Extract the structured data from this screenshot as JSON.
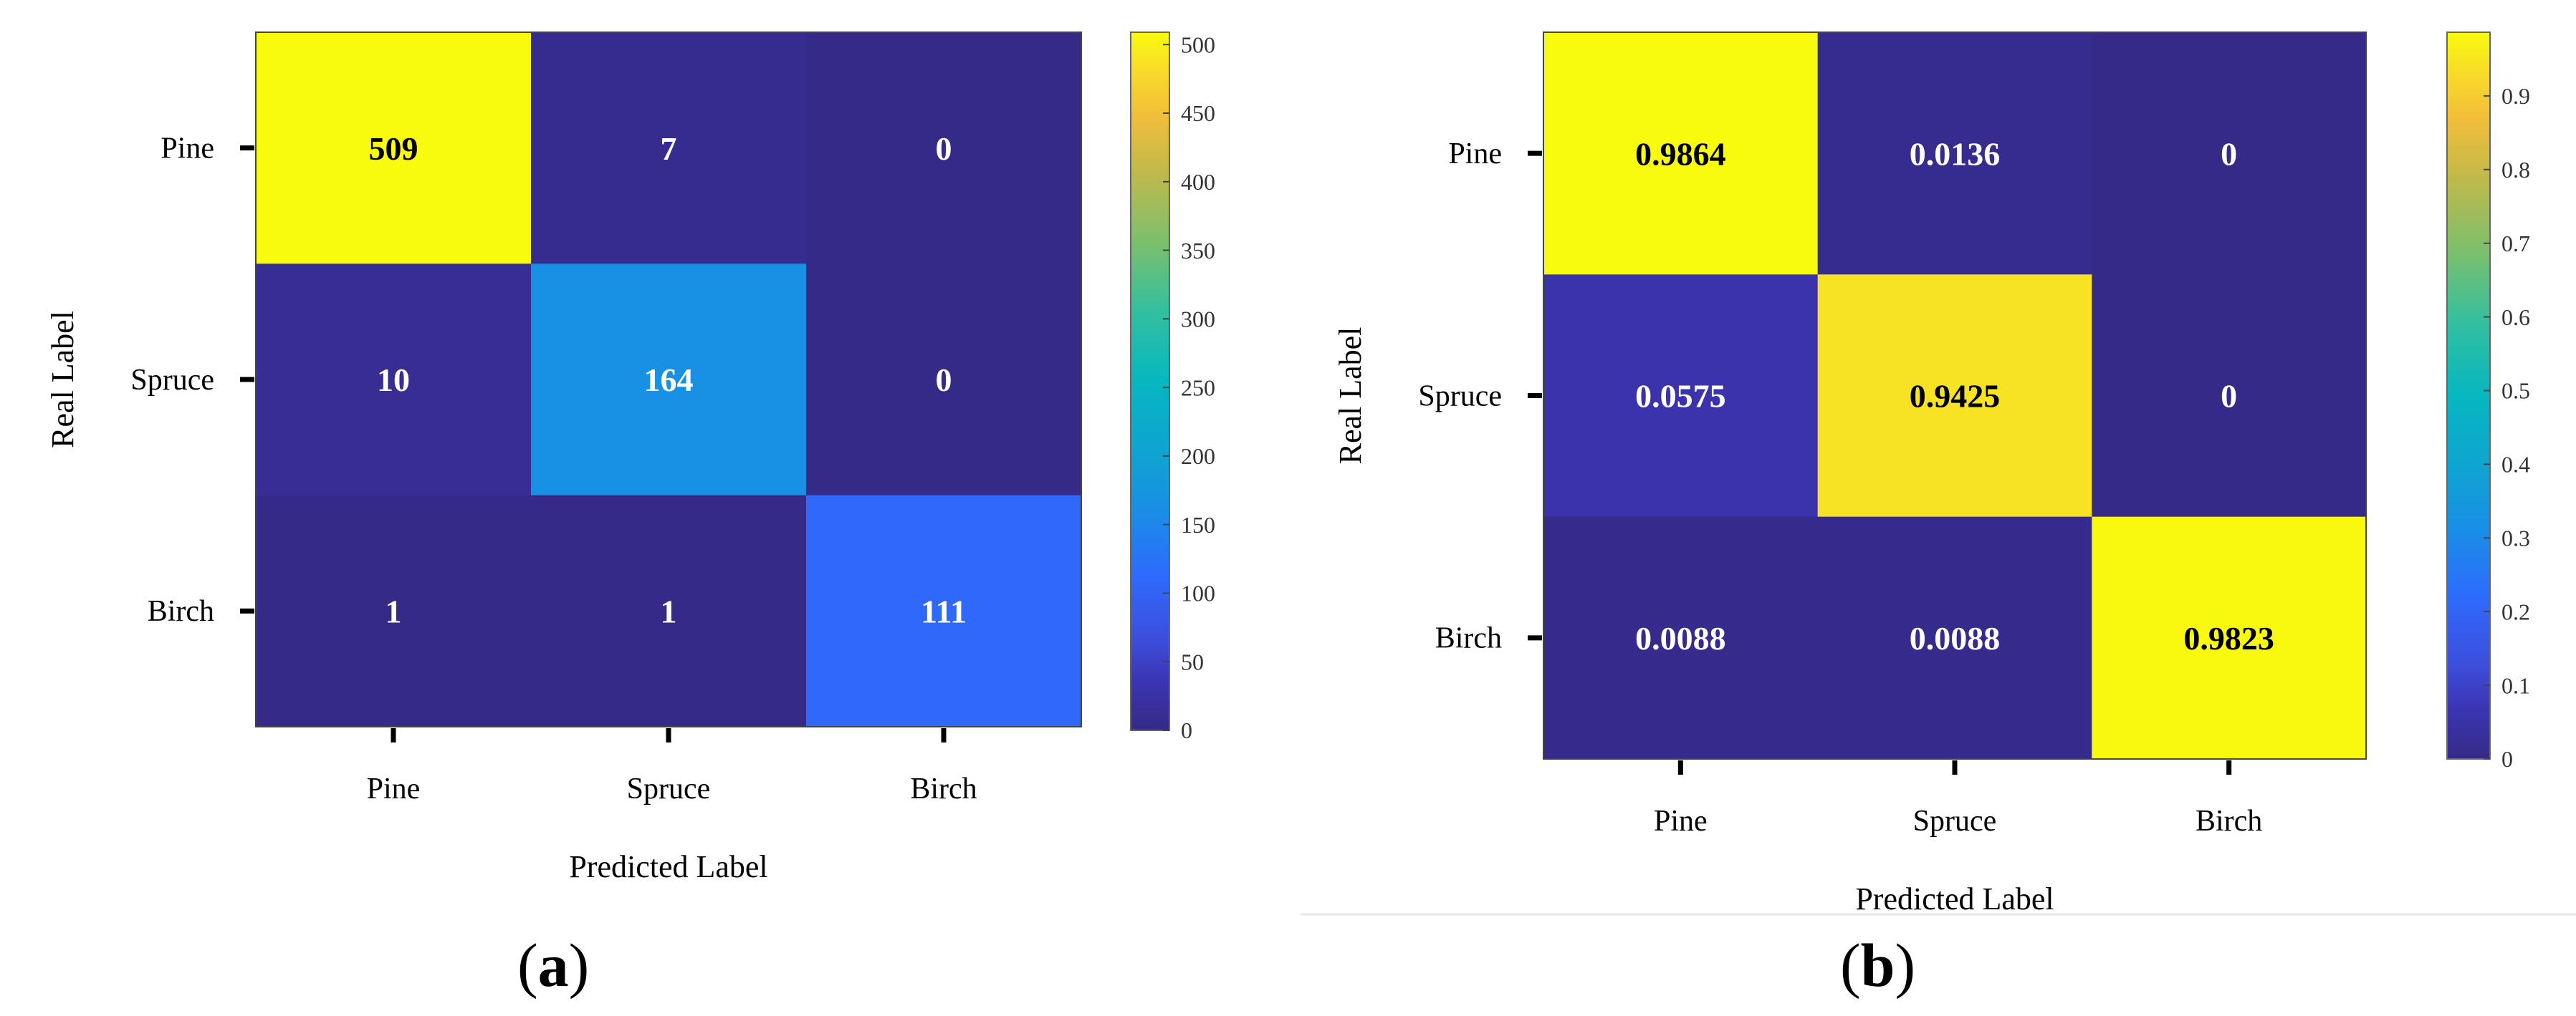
{
  "chart_data": [
    {
      "type": "heatmap",
      "panel_label": "a",
      "xlabel": "Predicted Label",
      "ylabel": "Real Label",
      "x_categories": [
        "Pine",
        "Spruce",
        "Birch"
      ],
      "y_categories": [
        "Pine",
        "Spruce",
        "Birch"
      ],
      "values": [
        [
          509,
          7,
          0
        ],
        [
          10,
          164,
          0
        ],
        [
          1,
          1,
          111
        ]
      ],
      "value_labels": [
        [
          "509",
          "7",
          "0"
        ],
        [
          "10",
          "164",
          "0"
        ],
        [
          "1",
          "1",
          "111"
        ]
      ],
      "colorbar": {
        "min": 0,
        "max": 509,
        "ticks": [
          "0",
          "50",
          "100",
          "150",
          "200",
          "250",
          "300",
          "350",
          "400",
          "450",
          "500"
        ],
        "tick_values": [
          0,
          50,
          100,
          150,
          200,
          250,
          300,
          350,
          400,
          450,
          500
        ]
      },
      "colormap": "parula"
    },
    {
      "type": "heatmap",
      "panel_label": "b",
      "xlabel": "Predicted Label",
      "ylabel": "Real Label",
      "x_categories": [
        "Pine",
        "Spruce",
        "Birch"
      ],
      "y_categories": [
        "Pine",
        "Spruce",
        "Birch"
      ],
      "values": [
        [
          0.9864,
          0.0136,
          0
        ],
        [
          0.0575,
          0.9425,
          0
        ],
        [
          0.0088,
          0.0088,
          0.9823
        ]
      ],
      "value_labels": [
        [
          "0.9864",
          "0.0136",
          "0"
        ],
        [
          "0.0575",
          "0.9425",
          "0"
        ],
        [
          "0.0088",
          "0.0088",
          "0.9823"
        ]
      ],
      "colorbar": {
        "min": 0,
        "max": 0.9864,
        "ticks": [
          "0",
          "0.1",
          "0.2",
          "0.3",
          "0.4",
          "0.5",
          "0.6",
          "0.7",
          "0.8",
          "0.9"
        ],
        "tick_values": [
          0,
          0.1,
          0.2,
          0.3,
          0.4,
          0.5,
          0.6,
          0.7,
          0.8,
          0.9
        ]
      },
      "colormap": "parula"
    }
  ]
}
